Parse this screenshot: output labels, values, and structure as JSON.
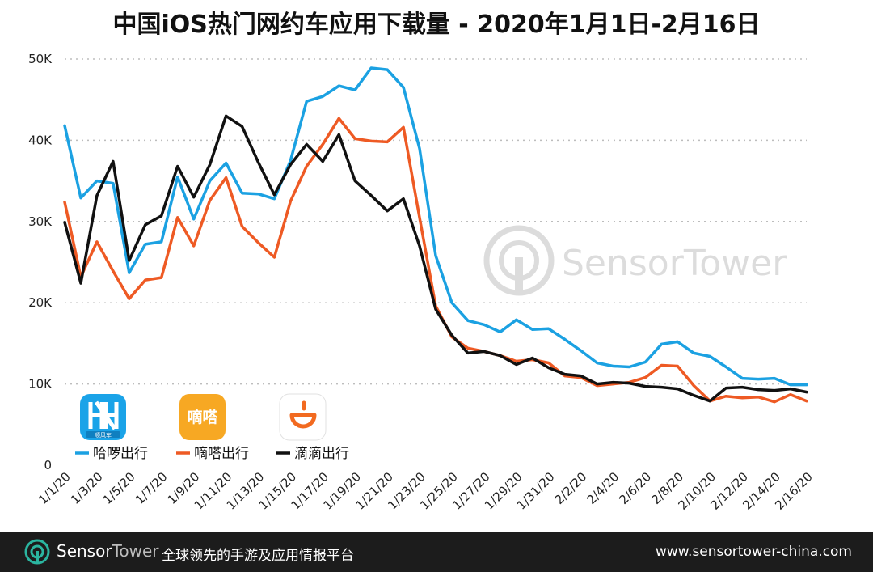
{
  "chart_data": {
    "type": "line",
    "title": "中国iOS热门网约车应用下载量 - 2020年1月1日-2月16日",
    "xlabel": "",
    "ylabel": "",
    "ylim": [
      0,
      50000
    ],
    "y_ticks": [
      {
        "value": 0,
        "label": "0"
      },
      {
        "value": 10000,
        "label": "10K"
      },
      {
        "value": 20000,
        "label": "20K"
      },
      {
        "value": 30000,
        "label": "30K"
      },
      {
        "value": 40000,
        "label": "40K"
      },
      {
        "value": 50000,
        "label": "50K"
      }
    ],
    "grid": true,
    "legend_position": "bottom-left",
    "categories": [
      "1/1/20",
      "1/2/20",
      "1/3/20",
      "1/4/20",
      "1/5/20",
      "1/6/20",
      "1/7/20",
      "1/8/20",
      "1/9/20",
      "1/10/20",
      "1/11/20",
      "1/12/20",
      "1/13/20",
      "1/14/20",
      "1/15/20",
      "1/16/20",
      "1/17/20",
      "1/18/20",
      "1/19/20",
      "1/20/20",
      "1/21/20",
      "1/22/20",
      "1/23/20",
      "1/24/20",
      "1/25/20",
      "1/26/20",
      "1/27/20",
      "1/28/20",
      "1/29/20",
      "1/30/20",
      "1/31/20",
      "2/1/20",
      "2/2/20",
      "2/3/20",
      "2/4/20",
      "2/5/20",
      "2/6/20",
      "2/7/20",
      "2/8/20",
      "2/9/20",
      "2/10/20",
      "2/11/20",
      "2/12/20",
      "2/13/20",
      "2/14/20",
      "2/15/20",
      "2/16/20"
    ],
    "x_tick_labels": [
      "1/1/20",
      "1/3/20",
      "1/5/20",
      "1/7/20",
      "1/9/20",
      "1/11/20",
      "1/13/20",
      "1/15/20",
      "1/17/20",
      "1/19/20",
      "1/21/20",
      "1/23/20",
      "1/25/20",
      "1/27/20",
      "1/29/20",
      "1/31/20",
      "2/2/20",
      "2/4/20",
      "2/6/20",
      "2/8/20",
      "2/10/20",
      "2/12/20",
      "2/14/20",
      "2/16/20"
    ],
    "series": [
      {
        "name": "哈啰出行",
        "color": "#1ba1e2",
        "values": [
          41800,
          32900,
          35000,
          34700,
          23700,
          27200,
          27500,
          35500,
          30300,
          35000,
          37200,
          33500,
          33400,
          32800,
          37500,
          44800,
          45400,
          46700,
          46200,
          48900,
          48700,
          46500,
          39000,
          25800,
          20000,
          17800,
          17300,
          16400,
          17900,
          16700,
          16800,
          15500,
          14100,
          12600,
          12200,
          12100,
          12700,
          14900,
          15200,
          13800,
          13400,
          12100,
          10700,
          10600,
          10700,
          9900,
          9900
        ]
      },
      {
        "name": "嘀嗒出行",
        "color": "#ee5a24",
        "values": [
          32400,
          23200,
          27500,
          23900,
          20500,
          22800,
          23100,
          30500,
          27000,
          32600,
          35400,
          29400,
          27400,
          25600,
          32500,
          36800,
          39500,
          42700,
          40200,
          39900,
          39800,
          41600,
          30500,
          19600,
          15800,
          14400,
          14000,
          13500,
          12800,
          13000,
          12600,
          11000,
          10800,
          9800,
          10000,
          10200,
          10800,
          12300,
          12200,
          9800,
          7900,
          8500,
          8300,
          8400,
          7800,
          8700,
          7900
        ]
      },
      {
        "name": "滴滴出行",
        "color": "#111111",
        "values": [
          29900,
          22400,
          33200,
          37400,
          25200,
          29600,
          30700,
          36800,
          33000,
          37000,
          43000,
          41700,
          37300,
          33300,
          37000,
          39500,
          37400,
          40700,
          35000,
          33200,
          31300,
          32800,
          27000,
          19200,
          16000,
          13800,
          14000,
          13500,
          12400,
          13200,
          12000,
          11200,
          11000,
          10000,
          10200,
          10100,
          9700,
          9600,
          9400,
          8600,
          7900,
          9500,
          9600,
          9300,
          9200,
          9400,
          9000
        ]
      }
    ]
  },
  "watermark": {
    "brand": "SensorTower"
  },
  "footer": {
    "brand_sensor": "Sensor",
    "brand_tower": "Tower",
    "tagline": "全球领先的手游及应用情报平台",
    "url": "www.sensortower-china.com"
  },
  "colors": {
    "grid": "#bdbdbd",
    "footer_bg": "#1c1c1c",
    "watermark": "#d9d9d9",
    "brand_teal": "#2bb5a0"
  },
  "legend_icons": [
    "hello-app-icon",
    "dida-app-icon",
    "didi-app-icon"
  ],
  "icon_texts": {
    "hello": "顺风车",
    "dida": "嘀嗒"
  }
}
